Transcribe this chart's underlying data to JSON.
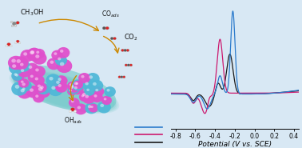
{
  "background_color": "#d8e8f4",
  "xlim": [
    -0.85,
    0.45
  ],
  "ylim": [
    -0.45,
    1.05
  ],
  "xticks": [
    -0.8,
    -0.6,
    -0.4,
    -0.2,
    0.0,
    0.2,
    0.4
  ],
  "xlabel": "Potential (V vs. SCE)",
  "line_colors": [
    "#2c7bcc",
    "#cc1a6f",
    "#1a1a1a"
  ],
  "xlabel_fontsize": 6.5,
  "tick_fontsize": 5.5,
  "nanochain_color": "#7acfcf",
  "sphere_pink": "#e050cc",
  "sphere_teal": "#50b8d8",
  "arrow_color": "#cc8800"
}
